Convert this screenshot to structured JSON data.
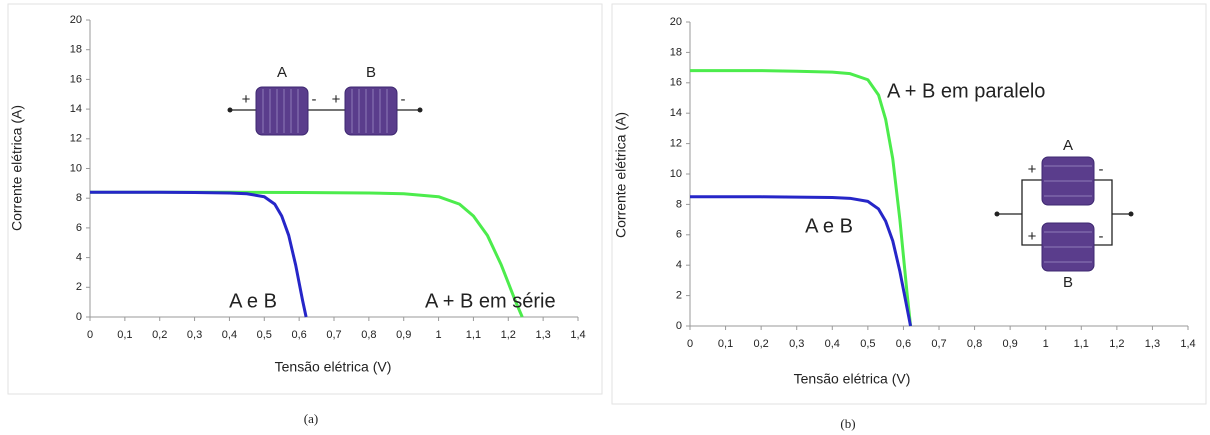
{
  "chart_data": [
    {
      "type": "line",
      "caption": "(a)",
      "x_label": "Tensão elétrica (V)",
      "y_label": "Corrente elétrica (A)",
      "xlim": [
        0,
        1.4
      ],
      "ylim": [
        0,
        20
      ],
      "xticks": [
        0,
        {
          "value": 0.1,
          "label": "0,1"
        },
        {
          "value": 0.2,
          "label": "0,2"
        },
        {
          "value": 0.3,
          "label": "0,3"
        },
        {
          "value": 0.4,
          "label": "0,4"
        },
        {
          "value": 0.5,
          "label": "0,5"
        },
        {
          "value": 0.6,
          "label": "0,6"
        },
        {
          "value": 0.7,
          "label": "0,7"
        },
        {
          "value": 0.8,
          "label": "0,8"
        },
        {
          "value": 0.9,
          "label": "0,9"
        },
        1,
        {
          "value": 1.1,
          "label": "1,1"
        },
        {
          "value": 1.2,
          "label": "1,2"
        },
        {
          "value": 1.3,
          "label": "1,3"
        },
        {
          "value": 1.4,
          "label": "1,4"
        }
      ],
      "yticks": [
        0,
        2,
        4,
        6,
        8,
        10,
        12,
        14,
        16,
        18,
        20
      ],
      "series": [
        {
          "name": "A + B em série",
          "color": "#4cec4c",
          "x": [
            0,
            0.2,
            0.4,
            0.6,
            0.8,
            0.9,
            1.0,
            1.06,
            1.1,
            1.14,
            1.18,
            1.2,
            1.22,
            1.24
          ],
          "values": [
            8.4,
            8.4,
            8.4,
            8.38,
            8.35,
            8.3,
            8.1,
            7.6,
            6.8,
            5.5,
            3.5,
            2.3,
            1.1,
            0
          ]
        },
        {
          "name": "A e B",
          "color": "#2626c8",
          "x": [
            0,
            0.1,
            0.2,
            0.3,
            0.4,
            0.45,
            0.5,
            0.53,
            0.55,
            0.57,
            0.59,
            0.6,
            0.61,
            0.62
          ],
          "values": [
            8.4,
            8.4,
            8.4,
            8.38,
            8.35,
            8.3,
            8.1,
            7.6,
            6.8,
            5.5,
            3.5,
            2.3,
            1.1,
            0
          ]
        }
      ],
      "diagram": {
        "cells": [
          "A",
          "B"
        ],
        "plus": "+",
        "minus": "-"
      }
    },
    {
      "type": "line",
      "caption": "(b)",
      "x_label": "Tensão elétrica (V)",
      "y_label": "Corrente elétrica (A)",
      "xlim": [
        0,
        1.4
      ],
      "ylim": [
        0,
        20
      ],
      "xticks": [
        0,
        {
          "value": 0.1,
          "label": "0,1"
        },
        {
          "value": 0.2,
          "label": "0,2"
        },
        {
          "value": 0.3,
          "label": "0,3"
        },
        {
          "value": 0.4,
          "label": "0,4"
        },
        {
          "value": 0.5,
          "label": "0,5"
        },
        {
          "value": 0.6,
          "label": "0,6"
        },
        {
          "value": 0.7,
          "label": "0,7"
        },
        {
          "value": 0.8,
          "label": "0,8"
        },
        {
          "value": 0.9,
          "label": "0,9"
        },
        1,
        {
          "value": 1.1,
          "label": "1,1"
        },
        {
          "value": 1.2,
          "label": "1,2"
        },
        {
          "value": 1.3,
          "label": "1,3"
        },
        {
          "value": 1.4,
          "label": "1,4"
        }
      ],
      "yticks": [
        0,
        2,
        4,
        6,
        8,
        10,
        12,
        14,
        16,
        18,
        20
      ],
      "series": [
        {
          "name": "A + B em paralelo",
          "color": "#4cec4c",
          "x": [
            0,
            0.1,
            0.2,
            0.3,
            0.4,
            0.45,
            0.5,
            0.53,
            0.55,
            0.57,
            0.59,
            0.6,
            0.61,
            0.62
          ],
          "values": [
            16.8,
            16.8,
            16.8,
            16.76,
            16.7,
            16.6,
            16.2,
            15.2,
            13.6,
            11,
            7,
            4.6,
            2.2,
            0
          ]
        },
        {
          "name": "A e B",
          "color": "#2626c8",
          "x": [
            0,
            0.1,
            0.2,
            0.3,
            0.4,
            0.45,
            0.5,
            0.53,
            0.55,
            0.57,
            0.59,
            0.6,
            0.61,
            0.62
          ],
          "values": [
            8.5,
            8.5,
            8.5,
            8.48,
            8.45,
            8.4,
            8.2,
            7.7,
            6.9,
            5.6,
            3.6,
            2.4,
            1.2,
            0
          ]
        }
      ],
      "diagram": {
        "cells": [
          "A",
          "B"
        ],
        "plus": "+",
        "minus": "-"
      }
    }
  ]
}
